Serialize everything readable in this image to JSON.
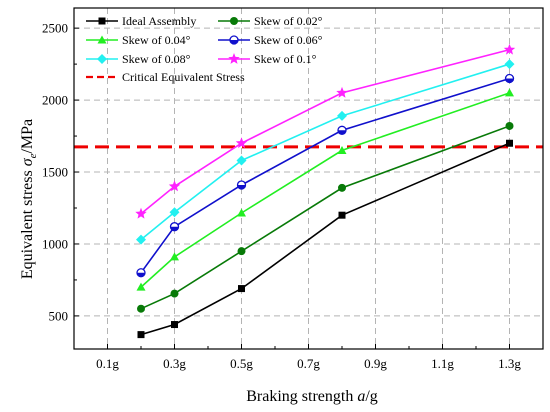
{
  "chart_data": {
    "type": "line",
    "xlabel_prefix": "Braking strength ",
    "xlabel_var": "a",
    "xlabel_suffix": "/g",
    "ylabel_prefix": "Equivalent stress ",
    "ylabel_var": "σ",
    "ylabel_sub": "e",
    "ylabel_suffix": "/MPa",
    "xlim": [
      0,
      1.4
    ],
    "ylim": [
      270,
      2640
    ],
    "x_ticks": [
      0.1,
      0.3,
      0.5,
      0.7,
      0.9,
      1.1,
      1.3
    ],
    "x_tick_labels": [
      "0.1g",
      "0.3g",
      "0.5g",
      "0.7g",
      "0.9g",
      "1.1g",
      "1.3g"
    ],
    "y_ticks": [
      500,
      1000,
      1500,
      2000,
      2500
    ],
    "y_tick_labels": [
      "500",
      "1000",
      "1500",
      "2000",
      "2500"
    ],
    "grid": true,
    "legend_position": "top-left",
    "x": [
      0.2,
      0.3,
      0.5,
      0.8,
      1.3
    ],
    "series": [
      {
        "name": "Ideal Assembly",
        "color": "#000000",
        "marker": "square",
        "values": [
          370,
          440,
          690,
          1200,
          1700
        ]
      },
      {
        "name": "Skew of 0.02°",
        "color": "#087a08",
        "marker": "circle",
        "values": [
          550,
          655,
          950,
          1390,
          1820
        ]
      },
      {
        "name": "Skew of 0.04°",
        "color": "#22ee22",
        "marker": "triangle",
        "values": [
          700,
          910,
          1215,
          1650,
          2050
        ]
      },
      {
        "name": "Skew of 0.06°",
        "color": "#1010cc",
        "marker": "half-circle",
        "values": [
          800,
          1120,
          1410,
          1790,
          2150
        ]
      },
      {
        "name": "Skew of 0.08°",
        "color": "#22f0f0",
        "marker": "diamond",
        "values": [
          1030,
          1220,
          1580,
          1890,
          2250
        ]
      },
      {
        "name": "Skew of 0.1°",
        "color": "#ff22ff",
        "marker": "star",
        "values": [
          1210,
          1400,
          1700,
          2050,
          2350
        ]
      }
    ],
    "reference_line": {
      "name": "Critical Equivalent Stress",
      "value": 1675,
      "color": "#ee0000",
      "style": "dashed"
    }
  }
}
